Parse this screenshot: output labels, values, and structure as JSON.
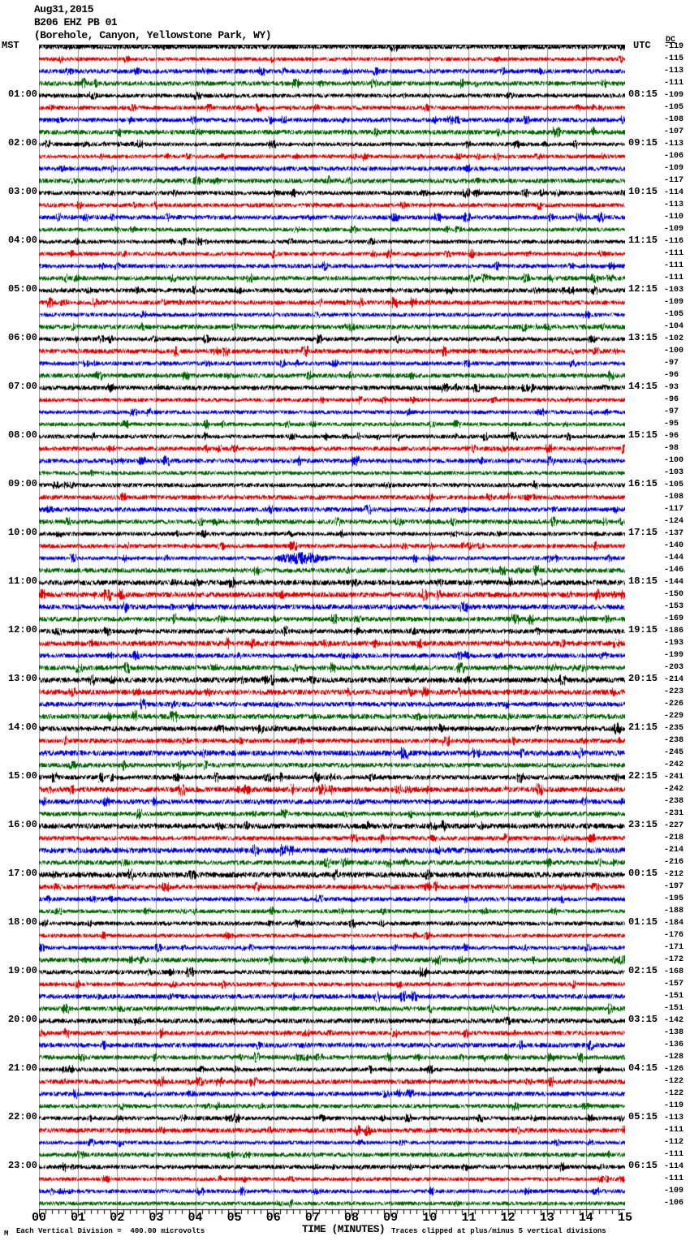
{
  "header": {
    "date": "Aug31,2015",
    "station": "B206 EHZ PB 01",
    "location": "(Borehole, Canyon, Yellowstone Park, WY)"
  },
  "axes": {
    "left_tz": "MST",
    "right_tz": "UTC",
    "dc_header": "DC",
    "x_title": "TIME (MINUTES)"
  },
  "footer": {
    "scale": "Each Vertical Division =  400.00 microvolts",
    "clip": "Traces clipped at plus/minus 5 vertical divisions",
    "corner_mark": "M"
  },
  "colors": {
    "trace_cycle": [
      "#000000",
      "#e00000",
      "#0000dd",
      "#006400"
    ],
    "grid": "#909090",
    "axis": "#000000",
    "background": "#ffffff"
  },
  "chart_data": {
    "type": "line",
    "subtype": "helicorder_seismogram",
    "title": "B206 EHZ PB 01 (Borehole, Canyon, Yellowstone Park, WY) Aug31,2015",
    "xlabel": "TIME (MINUTES)",
    "x_ticks": [
      "00",
      "01",
      "02",
      "03",
      "04",
      "05",
      "06",
      "07",
      "08",
      "09",
      "10",
      "11",
      "12",
      "13",
      "14",
      "15"
    ],
    "x_range_minutes": [
      0,
      15
    ],
    "rows_per_hour": 4,
    "minutes_per_row": 15,
    "row_color_cycle": [
      "black",
      "red",
      "blue",
      "green"
    ],
    "grid": true,
    "left_axis": {
      "timezone": "MST",
      "labels": [
        "01:00",
        "02:00",
        "03:00",
        "04:00",
        "05:00",
        "06:00",
        "07:00",
        "08:00",
        "09:00",
        "10:00",
        "11:00",
        "12:00",
        "13:00",
        "14:00",
        "15:00",
        "16:00",
        "17:00",
        "18:00",
        "19:00",
        "20:00",
        "21:00",
        "22:00",
        "23:00"
      ]
    },
    "right_axis": {
      "timezone": "UTC",
      "labels": [
        "08:15",
        "09:15",
        "10:15",
        "11:15",
        "12:15",
        "13:15",
        "14:15",
        "15:15",
        "16:15",
        "17:15",
        "18:15",
        "19:15",
        "20:15",
        "21:15",
        "22:15",
        "23:15",
        "00:15",
        "01:15",
        "02:15",
        "03:15",
        "04:15",
        "05:15",
        "06:15"
      ]
    },
    "dc_offsets_by_row": [
      -119,
      -115,
      -113,
      -111,
      -109,
      -105,
      -108,
      -107,
      -113,
      -106,
      -109,
      -117,
      -114,
      -113,
      -110,
      -109,
      -116,
      -111,
      -111,
      -111,
      -103,
      -109,
      -105,
      -104,
      -102,
      -100,
      -97,
      -96,
      -93,
      -96,
      -97,
      -95,
      -96,
      -98,
      -100,
      -103,
      -105,
      -108,
      -117,
      -124,
      -137,
      -140,
      -144,
      -146,
      -144,
      -150,
      -153,
      -169,
      -186,
      -193,
      -199,
      -203,
      -214,
      -223,
      -226,
      -229,
      -235,
      -238,
      -245,
      -242,
      -241,
      -242,
      -238,
      -231,
      -227,
      -218,
      -214,
      -216,
      -212,
      -197,
      -195,
      -188,
      -184,
      -176,
      -171,
      -172,
      -168,
      -157,
      -151,
      -151,
      -142,
      -138,
      -136,
      -128,
      -126,
      -122,
      -122,
      -119,
      -113,
      -111,
      -112,
      -111,
      -114,
      -111,
      -109,
      -106
    ],
    "notes": {
      "scale": "Each Vertical Division = 400.00 microvolts",
      "clipping": "Traces clipped at plus/minus 5 vertical divisions"
    },
    "visible_event": "burst of higher amplitude on the 10:00 MST (17:15 UTC) blue row near minute 7"
  }
}
